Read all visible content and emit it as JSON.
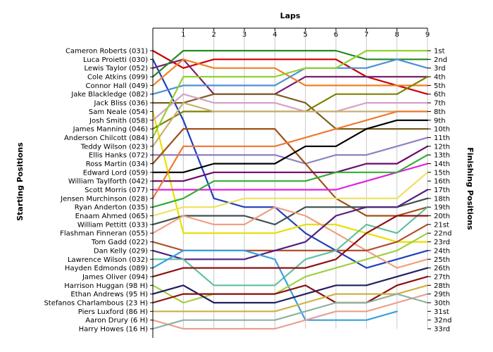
{
  "chart_data": {
    "type": "line",
    "title": "Laps",
    "ylabel_left": "Starting Positions",
    "ylabel_right": "Finishing Positions",
    "x": [
      0,
      1,
      2,
      3,
      4,
      5,
      6,
      7,
      8,
      9
    ],
    "x_tick_labels": [
      "1",
      "2",
      "3",
      "4",
      "5",
      "6",
      "7",
      "8",
      "9"
    ],
    "xlim": [
      0,
      9
    ],
    "ylim": [
      1,
      33
    ],
    "y_inverted": true,
    "grid": true,
    "starting_labels": [
      "Cameron Roberts (031)",
      "Luca Proietti (030)",
      "Lewis Taylor (052)",
      "Cole Atkins (099)",
      "Connor Hall (049)",
      "Jake Blackledge (082)",
      "Jack Bliss (036)",
      "Sam Neale (054)",
      "Josh Smith (058)",
      "James Manning (046)",
      "Anderson Chilcott (084)",
      "Teddy Wilson (023)",
      "Ellis Hanks (072)",
      "Ross Martin (034)",
      "Edward Lord (059)",
      "William Taylforth (042)",
      "Scott Morris (077)",
      "Jensen Murchinson (028)",
      "Ryan Anderton (035)",
      "Enaam Ahmed (065)",
      "William Pettitt (033)",
      "Flashman Finneran (055)",
      "Tom Gadd (022)",
      "Dan Kelly (029)",
      "Lawrence Wilson (032)",
      "Hayden Edmonds (089)",
      "James Oliver (094)",
      "Harrison Huggan (98 H)",
      "Ethan Andrews (95 H)",
      "Stefanos Charlambous (23 H)",
      "Piers Luxford (86 H)",
      "Aaron Drury (6 H)",
      "Harry Howes (16 H)"
    ],
    "finishing_labels": [
      "1st",
      "2nd",
      "3rd",
      "4th",
      "5th",
      "6th",
      "7th",
      "8th",
      "9th",
      "10th",
      "11th",
      "12th",
      "13th",
      "14th",
      "15th",
      "16th",
      "17th",
      "18th",
      "19th",
      "20th",
      "21st",
      "22nd",
      "23rd",
      "24th",
      "25th",
      "26th",
      "27th",
      "28th",
      "29th",
      "30th",
      "31st",
      "32nd",
      "33rd"
    ],
    "series": [
      {
        "color": "#cc0000",
        "values": [
          1,
          3,
          2,
          2,
          2,
          2,
          2,
          4,
          5,
          6
        ]
      },
      {
        "color": "#1f3fbf",
        "values": [
          2,
          9,
          18,
          19,
          19,
          22,
          24,
          26,
          25,
          24
        ]
      },
      {
        "color": "#7a1f6e",
        "values": [
          3,
          2,
          6,
          6,
          6,
          4,
          4,
          4,
          4,
          4
        ]
      },
      {
        "color": "#228b22",
        "values": [
          4,
          1,
          1,
          1,
          1,
          1,
          1,
          2,
          2,
          2
        ]
      },
      {
        "color": "#f08020",
        "values": [
          5,
          2,
          3,
          3,
          3,
          5,
          5,
          5,
          5,
          5
        ]
      },
      {
        "color": "#4a90d9",
        "values": [
          6,
          5,
          5,
          5,
          5,
          3,
          3,
          3,
          2,
          3
        ]
      },
      {
        "color": "#7a5f20",
        "values": [
          7,
          7,
          6,
          6,
          6,
          7,
          10,
          10,
          10,
          10
        ]
      },
      {
        "color": "#e8e000",
        "values": [
          8,
          22,
          22,
          22,
          22,
          21,
          21,
          22,
          23,
          23
        ]
      },
      {
        "color": "#d8a0c8",
        "values": [
          9,
          6,
          7,
          7,
          7,
          8,
          8,
          7,
          7,
          7
        ]
      },
      {
        "color": "#808000",
        "values": [
          10,
          8,
          8,
          8,
          8,
          8,
          6,
          6,
          6,
          4
        ]
      },
      {
        "color": "#90d030",
        "values": [
          11,
          4,
          4,
          4,
          4,
          3,
          3,
          1,
          1,
          1
        ]
      },
      {
        "color": "#c8b070",
        "values": [
          12,
          7,
          8,
          8,
          8,
          8,
          8,
          8,
          8,
          8
        ]
      },
      {
        "color": "#9080c0",
        "values": [
          13,
          13,
          13,
          13,
          13,
          14,
          13,
          13,
          12,
          11
        ]
      },
      {
        "color": "#a05018",
        "values": [
          14,
          10,
          10,
          10,
          10,
          14,
          18,
          20,
          20,
          19
        ]
      },
      {
        "color": "#000000",
        "values": [
          15,
          15,
          14,
          14,
          14,
          12,
          12,
          10,
          9,
          9
        ]
      },
      {
        "color": "#6a0a6a",
        "values": [
          16,
          16,
          15,
          15,
          15,
          15,
          15,
          14,
          14,
          12
        ]
      },
      {
        "color": "#e020e0",
        "values": [
          17,
          17,
          17,
          17,
          17,
          17,
          17,
          16,
          15,
          14
        ]
      },
      {
        "color": "#f07830",
        "values": [
          18,
          12,
          12,
          12,
          12,
          11,
          10,
          9,
          8,
          8
        ]
      },
      {
        "color": "#30b030",
        "values": [
          19,
          18,
          16,
          16,
          16,
          16,
          15,
          15,
          15,
          13
        ]
      },
      {
        "color": "#f0e060",
        "values": [
          20,
          19,
          19,
          18,
          18,
          18,
          18,
          18,
          18,
          15
        ]
      },
      {
        "color": "#405050",
        "values": [
          21,
          20,
          20,
          20,
          21,
          19,
          19,
          19,
          19,
          18
        ]
      },
      {
        "color": "#f0a080",
        "values": [
          22,
          20,
          21,
          21,
          19,
          20,
          22,
          24,
          26,
          25
        ]
      },
      {
        "color": "#b05030",
        "values": [
          23,
          24,
          24,
          24,
          24,
          24,
          24,
          24,
          23,
          21
        ]
      },
      {
        "color": "#502080",
        "values": [
          24,
          25,
          25,
          25,
          24,
          23,
          20,
          19,
          19,
          17
        ]
      },
      {
        "color": "#60c0a0",
        "values": [
          25,
          25,
          28,
          28,
          28,
          25,
          24,
          21,
          22,
          19
        ]
      },
      {
        "color": "#3aa0e0",
        "values": [
          26,
          24,
          24,
          24,
          25,
          32,
          32,
          32,
          31,
          null
        ]
      },
      {
        "color": "#901010",
        "values": [
          27,
          26,
          26,
          26,
          26,
          26,
          25,
          22,
          20,
          20
        ]
      },
      {
        "color": "#a0d040",
        "values": [
          28,
          30,
          29,
          29,
          29,
          27,
          26,
          25,
          24,
          22
        ]
      },
      {
        "color": "#202060",
        "values": [
          29,
          28,
          30,
          30,
          30,
          29,
          28,
          28,
          27,
          26
        ]
      },
      {
        "color": "#8b1010",
        "values": [
          30,
          29,
          29,
          29,
          29,
          28,
          30,
          30,
          28,
          27
        ]
      },
      {
        "color": "#d0b040",
        "values": [
          31,
          31,
          31,
          31,
          31,
          30,
          29,
          29,
          29,
          28
        ]
      },
      {
        "color": "#e8a090",
        "values": [
          32,
          33,
          33,
          33,
          33,
          32,
          31,
          31,
          30,
          29
        ]
      },
      {
        "color": "#90b0a0",
        "values": [
          33,
          32,
          32,
          32,
          32,
          31,
          30,
          30,
          29,
          30
        ]
      }
    ]
  }
}
